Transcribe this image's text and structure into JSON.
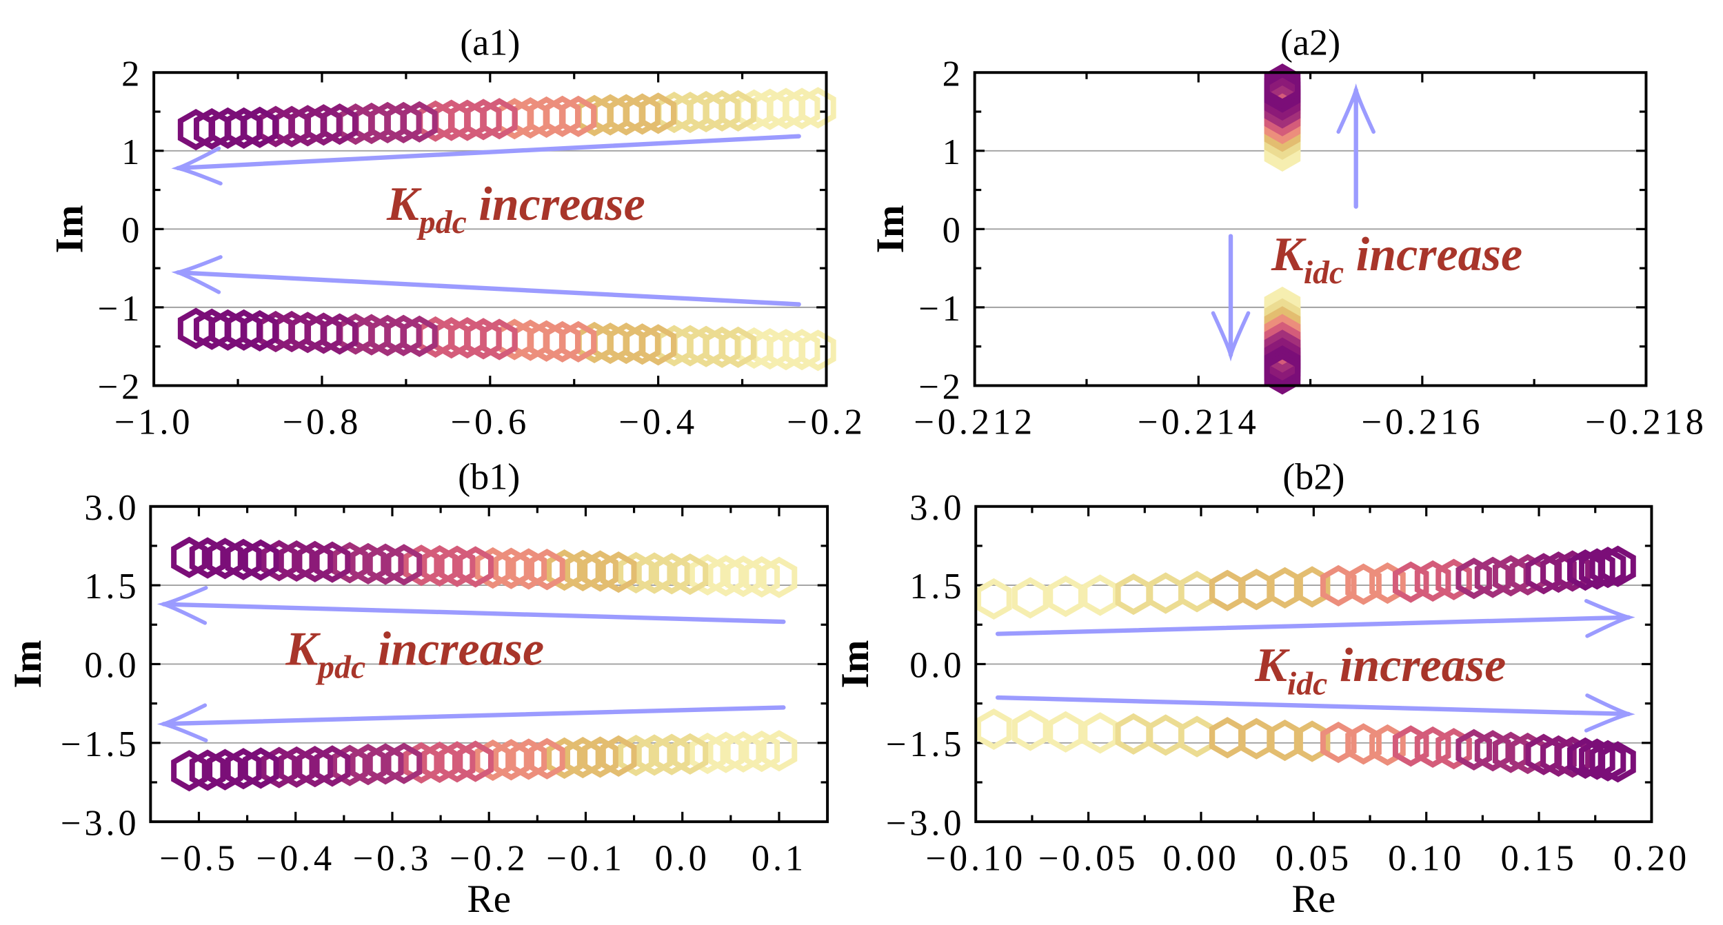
{
  "chart_data": [
    {
      "id": "a1",
      "type": "scatter",
      "title": "(a1)",
      "xlabel": "",
      "ylabel": "Im",
      "xlim": [
        -1.0,
        -0.2
      ],
      "ylim": [
        -2,
        2
      ],
      "xticks": [
        -1.0,
        -0.8,
        -0.6,
        -0.4,
        -0.2
      ],
      "xtick_labels": [
        "−1.0",
        "−0.8",
        "−0.6",
        "−0.4",
        "−0.2"
      ],
      "yticks": [
        -2,
        -1,
        0,
        1,
        2
      ],
      "ytick_labels": [
        "−2",
        "−1",
        "0",
        "1",
        "2"
      ],
      "grid_y": [
        -1,
        0,
        1
      ],
      "conjugate_pair": true,
      "annotation": {
        "symbol": "K",
        "subscript": "pdc",
        "text": " increase",
        "direction": "left"
      },
      "re": [
        -0.21,
        -0.229,
        -0.248,
        -0.267,
        -0.286,
        -0.305,
        -0.324,
        -0.343,
        -0.362,
        -0.381,
        -0.4,
        -0.419,
        -0.438,
        -0.457,
        -0.476,
        -0.495,
        -0.514,
        -0.533,
        -0.552,
        -0.571,
        -0.589,
        -0.608,
        -0.627,
        -0.646,
        -0.665,
        -0.684,
        -0.703,
        -0.722,
        -0.741,
        -0.76,
        -0.779,
        -0.798,
        -0.817,
        -0.836,
        -0.855,
        -0.874,
        -0.893,
        -0.912,
        -0.931,
        -0.95
      ],
      "im": [
        1.55,
        1.54,
        1.54,
        1.53,
        1.52,
        1.51,
        1.51,
        1.5,
        1.49,
        1.49,
        1.48,
        1.47,
        1.46,
        1.46,
        1.45,
        1.44,
        1.44,
        1.43,
        1.42,
        1.41,
        1.41,
        1.4,
        1.39,
        1.39,
        1.38,
        1.37,
        1.36,
        1.36,
        1.35,
        1.34,
        1.34,
        1.33,
        1.32,
        1.31,
        1.31,
        1.3,
        1.29,
        1.29,
        1.28,
        1.27
      ]
    },
    {
      "id": "a2",
      "type": "scatter",
      "title": "(a2)",
      "xlabel": "",
      "ylabel": "Im",
      "xlim": [
        -0.212,
        -0.218
      ],
      "ylim": [
        -2,
        2
      ],
      "xticks": [
        -0.212,
        -0.214,
        -0.216,
        -0.218
      ],
      "xtick_labels": [
        "−0.212",
        "−0.214",
        "−0.216",
        "−0.218"
      ],
      "yticks": [
        -2,
        -1,
        0,
        1,
        2
      ],
      "ytick_labels": [
        "−2",
        "−1",
        "0",
        "1",
        "2"
      ],
      "grid_y": [
        -1,
        0,
        1
      ],
      "conjugate_pair": true,
      "annotation": {
        "symbol": "K",
        "subscript": "idc",
        "text": " increase",
        "direction": "vertical"
      },
      "re": [
        -0.21475,
        -0.21475,
        -0.21475,
        -0.21475,
        -0.21475,
        -0.21475,
        -0.21475,
        -0.21475,
        -0.21475,
        -0.21475,
        -0.21475,
        -0.21475,
        -0.21475,
        -0.21475,
        -0.21475,
        -0.21475,
        -0.21475,
        -0.21475
      ],
      "im": [
        1.0,
        1.05,
        1.1,
        1.15,
        1.2,
        1.25,
        1.3,
        1.35,
        1.4,
        1.45,
        1.5,
        1.55,
        1.6,
        1.65,
        1.7,
        1.75,
        1.8,
        1.85
      ]
    },
    {
      "id": "b1",
      "type": "scatter",
      "title": "(b1)",
      "xlabel": "Re",
      "ylabel": "Im",
      "xlim": [
        -0.55,
        0.15
      ],
      "ylim": [
        -3,
        3
      ],
      "xticks": [
        -0.5,
        -0.4,
        -0.3,
        -0.2,
        -0.1,
        0.0,
        0.1
      ],
      "xtick_labels": [
        "−0.5",
        "−0.4",
        "−0.3",
        "−0.2",
        "−0.1",
        "0.0",
        "0.1"
      ],
      "yticks": [
        -3,
        -1.5,
        0,
        1.5,
        3
      ],
      "ytick_labels": [
        "−3.0",
        "−1.5",
        "0.0",
        "1.5",
        "3.0"
      ],
      "grid_y": [
        -1.5,
        0,
        1.5
      ],
      "conjugate_pair": true,
      "annotation": {
        "symbol": "K",
        "subscript": "pdc",
        "text": " increase",
        "direction": "left"
      },
      "re": [
        0.1,
        0.082,
        0.063,
        0.045,
        0.026,
        0.008,
        -0.011,
        -0.029,
        -0.048,
        -0.066,
        -0.085,
        -0.103,
        -0.122,
        -0.14,
        -0.159,
        -0.177,
        -0.196,
        -0.214,
        -0.233,
        -0.251,
        -0.27,
        -0.288,
        -0.307,
        -0.325,
        -0.344,
        -0.362,
        -0.38,
        -0.399,
        -0.417,
        -0.436,
        -0.454,
        -0.473,
        -0.491,
        -0.51
      ],
      "im": [
        1.65,
        1.66,
        1.67,
        1.68,
        1.7,
        1.71,
        1.72,
        1.73,
        1.74,
        1.75,
        1.77,
        1.78,
        1.79,
        1.8,
        1.81,
        1.82,
        1.83,
        1.85,
        1.86,
        1.87,
        1.88,
        1.89,
        1.9,
        1.91,
        1.93,
        1.94,
        1.95,
        1.96,
        1.97,
        1.98,
        1.99,
        2.01,
        2.02,
        2.03
      ]
    },
    {
      "id": "b2",
      "type": "scatter",
      "title": "(b2)",
      "xlabel": "Re",
      "ylabel": "Im",
      "xlim": [
        -0.1,
        0.2
      ],
      "ylim": [
        -3,
        3
      ],
      "xticks": [
        -0.1,
        -0.05,
        0.0,
        0.05,
        0.1,
        0.15,
        0.2
      ],
      "xtick_labels": [
        "−0.10",
        "−0.05",
        "0.00",
        "0.05",
        "0.10",
        "0.15",
        "0.20"
      ],
      "yticks": [
        -3,
        -1.5,
        0,
        1.5,
        3
      ],
      "ytick_labels": [
        "−3.0",
        "−1.5",
        "0.0",
        "1.5",
        "3.0"
      ],
      "grid_y": [
        -1.5,
        0,
        1.5
      ],
      "conjugate_pair": true,
      "annotation": {
        "symbol": "K",
        "subscript": "idc",
        "text": " increase",
        "direction": "right"
      },
      "re": [
        -0.092,
        -0.0758,
        -0.0601,
        -0.0448,
        -0.03,
        -0.0157,
        -0.0018,
        0.0117,
        0.0246,
        0.0372,
        0.0493,
        0.061,
        0.0721,
        0.0828,
        0.0931,
        0.1029,
        0.1122,
        0.1211,
        0.1295,
        0.1375,
        0.145,
        0.1521,
        0.1587,
        0.1649,
        0.1706,
        0.1758,
        0.1806,
        0.185
      ],
      "im": [
        1.24,
        1.26,
        1.29,
        1.31,
        1.33,
        1.35,
        1.38,
        1.4,
        1.42,
        1.45,
        1.47,
        1.49,
        1.52,
        1.54,
        1.56,
        1.58,
        1.61,
        1.63,
        1.65,
        1.68,
        1.7,
        1.72,
        1.75,
        1.77,
        1.79,
        1.81,
        1.84,
        1.86
      ]
    }
  ],
  "colors": {
    "colormap": [
      "#f6eeb0",
      "#ecdc92",
      "#e3bd70",
      "#ec8e7c",
      "#d45c7a",
      "#a3307a",
      "#8c1a78",
      "#7b0e78"
    ],
    "arrow": "#9b9bff",
    "annotation": "#a8352a",
    "grid": "#a0a0a0"
  }
}
